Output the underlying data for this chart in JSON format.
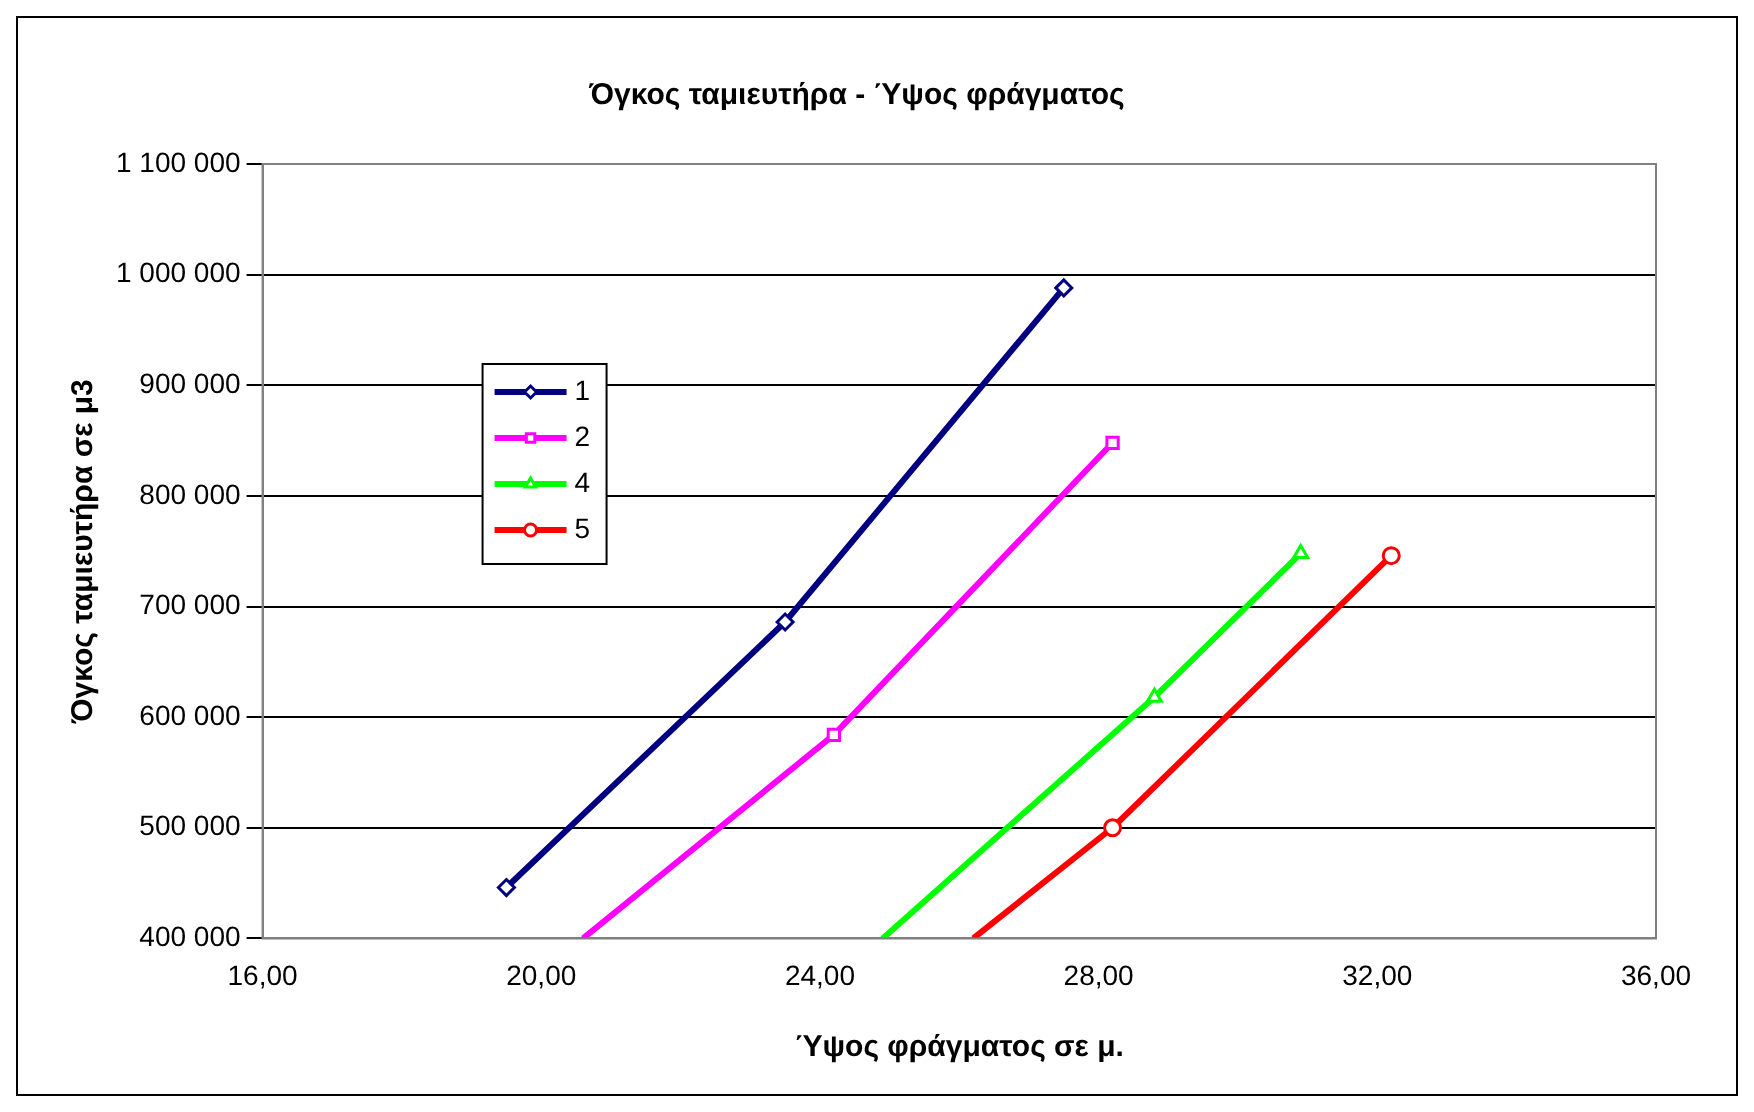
{
  "chart_data": {
    "type": "line",
    "title": "Όγκος ταμιευτήρα - Ύψος φράγματος",
    "xlabel": "Ύψος φράγματος σε μ.",
    "ylabel": "Όγκος ταμιευτήρα σε μ3",
    "xlim": [
      16,
      36
    ],
    "xticks": [
      {
        "value": 16,
        "label": "16,00"
      },
      {
        "value": 20,
        "label": "20,00"
      },
      {
        "value": 24,
        "label": "24,00"
      },
      {
        "value": 28,
        "label": "28,00"
      },
      {
        "value": 32,
        "label": "32,00"
      },
      {
        "value": 36,
        "label": "36,00"
      }
    ],
    "ylim": [
      400000,
      1100000
    ],
    "yticks": [
      {
        "value": 400000,
        "label": "400 000"
      },
      {
        "value": 500000,
        "label": "500 000"
      },
      {
        "value": 600000,
        "label": "600 000"
      },
      {
        "value": 700000,
        "label": "700 000"
      },
      {
        "value": 800000,
        "label": "800 000"
      },
      {
        "value": 900000,
        "label": "900 000"
      },
      {
        "value": 1000000,
        "label": "1 000 000"
      },
      {
        "value": 1100000,
        "label": "1 100 000"
      }
    ],
    "grid": "y",
    "legend": "top left",
    "series": [
      {
        "name": "1",
        "color": "#000080",
        "marker": "diamond",
        "x": [
          19.5,
          23.5,
          27.5
        ],
        "values": [
          446000,
          686000,
          988000
        ]
      },
      {
        "name": "2",
        "color": "#ff00ff",
        "marker": "square",
        "x": [
          20.6,
          24.2,
          28.2
        ],
        "values": [
          400000,
          584000,
          848000
        ]
      },
      {
        "name": "4",
        "color": "#00ff00",
        "marker": "triangle",
        "x": [
          24.9,
          28.8,
          30.9
        ],
        "values": [
          400000,
          618000,
          748000
        ]
      },
      {
        "name": "5",
        "color": "#ff0000",
        "marker": "circle",
        "x": [
          26.2,
          28.2,
          32.2
        ],
        "values": [
          400000,
          500000,
          746000
        ]
      }
    ]
  }
}
